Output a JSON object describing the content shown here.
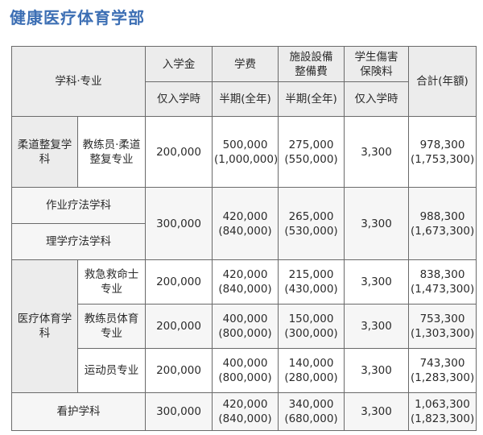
{
  "page_title": "健康医疗体育学部",
  "headers": {
    "dept": "学科·专业",
    "admission": "入学金",
    "tuition": "学费",
    "facility_l1": "施設設備",
    "facility_l2": "整備費",
    "insurance_l1": "学生傷害",
    "insurance_l2": "保険料",
    "total": "合計(年額)",
    "admission_sub": "仅入学時",
    "tuition_sub": "半期(全年)",
    "facility_sub": "半期(全年)",
    "insurance_sub": "仅入学時"
  },
  "rows": {
    "judo": {
      "group": "柔道整复学科",
      "course": "教练员·柔道整复专业",
      "admission": "200,000",
      "tuition_half": "500,000",
      "tuition_year": "(1,000,000)",
      "facility_half": "275,000",
      "facility_year": "(550,000)",
      "insurance": "3,300",
      "total_half": "978,300",
      "total_year": "(1,753,300)"
    },
    "occupational": {
      "dept": "作业疗法学科",
      "admission": "300,000",
      "tuition_half": "420,000",
      "tuition_year": "(840,000)",
      "facility_half": "265,000",
      "facility_year": "(530,000)",
      "insurance": "3,300",
      "total_half": "988,300",
      "total_year": "(1,673,300)"
    },
    "physical": {
      "dept": "理学疗法学科"
    },
    "emt": {
      "group": "医疗体育学科",
      "course": "救急救命士专业",
      "admission": "200,000",
      "tuition_half": "420,000",
      "tuition_year": "(840,000)",
      "facility_half": "215,000",
      "facility_year": "(430,000)",
      "insurance": "3,300",
      "total_half": "838,300",
      "total_year": "(1,473,300)"
    },
    "coach_pe": {
      "course": "教练员体育专业",
      "admission": "200,000",
      "tuition_half": "400,000",
      "tuition_year": "(800,000)",
      "facility_half": "150,000",
      "facility_year": "(300,000)",
      "insurance": "3,300",
      "total_half": "753,300",
      "total_year": "(1,303,300)"
    },
    "athlete": {
      "course": "运动员专业",
      "admission": "200,000",
      "tuition_half": "400,000",
      "tuition_year": "(800,000)",
      "facility_half": "140,000",
      "facility_year": "(280,000)",
      "insurance": "3,300",
      "total_half": "743,300",
      "total_year": "(1,283,300)"
    },
    "nursing": {
      "dept": "看护学科",
      "admission": "300,000",
      "tuition_half": "420,000",
      "tuition_year": "(840,000)",
      "facility_half": "340,000",
      "facility_year": "(680,000)",
      "insurance": "3,300",
      "total_half": "1,063,300",
      "total_year": "(1,823,300)"
    }
  }
}
